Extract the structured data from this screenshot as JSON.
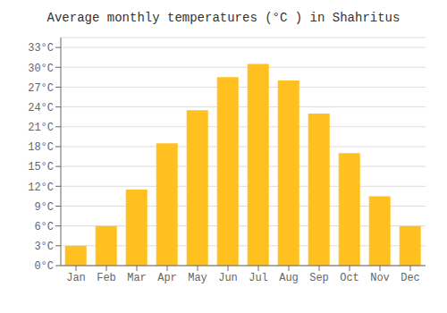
{
  "chart_data": {
    "type": "bar",
    "title": "Average monthly temperatures (°C ) in Shahritus",
    "categories": [
      "Jan",
      "Feb",
      "Mar",
      "Apr",
      "May",
      "Jun",
      "Jul",
      "Aug",
      "Sep",
      "Oct",
      "Nov",
      "Dec"
    ],
    "values": [
      3,
      6,
      11.5,
      18.5,
      23.5,
      28.5,
      30.5,
      28,
      23,
      17,
      10.5,
      6
    ],
    "color": "#FFC020",
    "ylim": [
      0,
      34.5
    ],
    "yticks": [
      {
        "value": 0,
        "label": "0°C"
      },
      {
        "value": 3,
        "label": "3°C"
      },
      {
        "value": 6,
        "label": "6°C"
      },
      {
        "value": 9,
        "label": "9°C"
      },
      {
        "value": 12,
        "label": "12°C"
      },
      {
        "value": 15,
        "label": "15°C"
      },
      {
        "value": 18,
        "label": "18°C"
      },
      {
        "value": 21,
        "label": "21°C"
      },
      {
        "value": 24,
        "label": "24°C"
      },
      {
        "value": 27,
        "label": "27°C"
      },
      {
        "value": 30,
        "label": "30°C"
      },
      {
        "value": 33,
        "label": "33°C"
      }
    ],
    "grid": true
  }
}
